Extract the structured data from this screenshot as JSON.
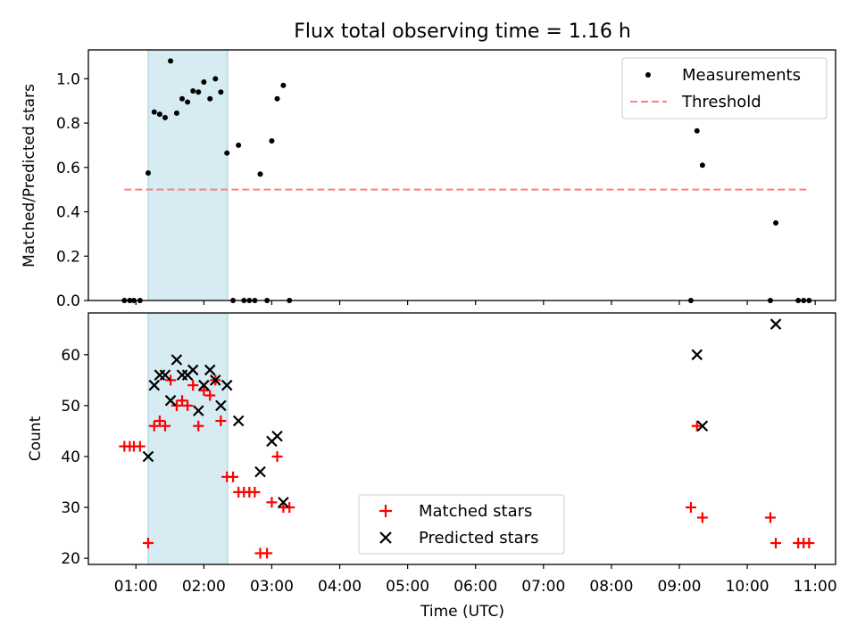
{
  "chart_data": [
    {
      "type": "scatter",
      "title": "Flux total observing time = 1.16 h",
      "xlabel": "",
      "ylabel": "Matched/Predicted stars",
      "xlim": [
        0.3,
        11.3
      ],
      "ylim": [
        0.0,
        1.13
      ],
      "yticks": [
        0.0,
        0.2,
        0.4,
        0.6,
        0.8,
        1.0
      ],
      "ytick_labels": [
        "0.0",
        "0.2",
        "0.4",
        "0.6",
        "0.8",
        "1.0"
      ],
      "legend": {
        "position": "top-right",
        "entries": [
          "Measurements",
          "Threshold"
        ]
      },
      "shaded_span": [
        1.18,
        2.35
      ],
      "series": [
        {
          "name": "Measurements",
          "marker": "dot",
          "color": "#000000",
          "points": [
            [
              0.83,
              0.0
            ],
            [
              0.91,
              0.0
            ],
            [
              0.97,
              0.0
            ],
            [
              1.06,
              0.0
            ],
            [
              1.18,
              0.575
            ],
            [
              1.27,
              0.85
            ],
            [
              1.35,
              0.84
            ],
            [
              1.43,
              0.825
            ],
            [
              1.51,
              1.08
            ],
            [
              1.6,
              0.845
            ],
            [
              1.68,
              0.91
            ],
            [
              1.76,
              0.895
            ],
            [
              1.84,
              0.945
            ],
            [
              1.92,
              0.94
            ],
            [
              2.0,
              0.985
            ],
            [
              2.09,
              0.91
            ],
            [
              2.17,
              1.0
            ],
            [
              2.25,
              0.94
            ],
            [
              2.34,
              0.665
            ],
            [
              2.43,
              0.0
            ],
            [
              2.51,
              0.7
            ],
            [
              2.59,
              0.0
            ],
            [
              2.67,
              0.0
            ],
            [
              2.75,
              0.0
            ],
            [
              2.83,
              0.57
            ],
            [
              2.93,
              0.0
            ],
            [
              3.0,
              0.72
            ],
            [
              3.08,
              0.91
            ],
            [
              3.17,
              0.97
            ],
            [
              3.26,
              0.0
            ],
            [
              9.17,
              0.0
            ],
            [
              9.26,
              0.765
            ],
            [
              9.34,
              0.61
            ],
            [
              10.34,
              0.0
            ],
            [
              10.42,
              0.35
            ],
            [
              10.75,
              0.0
            ],
            [
              10.83,
              0.0
            ],
            [
              10.91,
              0.0
            ]
          ]
        },
        {
          "name": "Threshold",
          "style": "dashed-line",
          "color": "#ff7f7f",
          "x": [
            0.83,
            10.91
          ],
          "y": [
            0.5,
            0.5
          ]
        }
      ]
    },
    {
      "type": "scatter",
      "title": "",
      "xlabel": "Time (UTC)",
      "ylabel": "Count",
      "xlim": [
        0.3,
        11.3
      ],
      "ylim": [
        18.8,
        68.2
      ],
      "xticks": [
        1,
        2,
        3,
        4,
        5,
        6,
        7,
        8,
        9,
        10,
        11
      ],
      "xtick_labels": [
        "01:00",
        "02:00",
        "03:00",
        "04:00",
        "05:00",
        "06:00",
        "07:00",
        "08:00",
        "09:00",
        "10:00",
        "11:00"
      ],
      "yticks": [
        20,
        30,
        40,
        50,
        60
      ],
      "ytick_labels": [
        "20",
        "30",
        "40",
        "50",
        "60"
      ],
      "legend": {
        "position": "bottom-center",
        "entries": [
          "Matched stars",
          "Predicted stars"
        ]
      },
      "shaded_span": [
        1.18,
        2.35
      ],
      "series": [
        {
          "name": "Matched stars",
          "marker": "plus",
          "color": "#ff0000",
          "points": [
            [
              0.83,
              42
            ],
            [
              0.91,
              42
            ],
            [
              0.97,
              42
            ],
            [
              1.06,
              42
            ],
            [
              1.18,
              23
            ],
            [
              1.27,
              46
            ],
            [
              1.35,
              47
            ],
            [
              1.43,
              46
            ],
            [
              1.51,
              55
            ],
            [
              1.6,
              50
            ],
            [
              1.68,
              51
            ],
            [
              1.76,
              50
            ],
            [
              1.84,
              54
            ],
            [
              1.92,
              46
            ],
            [
              2.0,
              53
            ],
            [
              2.09,
              52
            ],
            [
              2.17,
              55
            ],
            [
              2.25,
              47
            ],
            [
              2.34,
              36
            ],
            [
              2.43,
              36
            ],
            [
              2.51,
              33
            ],
            [
              2.59,
              33
            ],
            [
              2.67,
              33
            ],
            [
              2.75,
              33
            ],
            [
              2.83,
              21
            ],
            [
              2.93,
              21
            ],
            [
              3.0,
              31
            ],
            [
              3.08,
              40
            ],
            [
              3.17,
              30
            ],
            [
              3.26,
              30
            ],
            [
              9.17,
              30
            ],
            [
              9.26,
              46
            ],
            [
              9.34,
              28
            ],
            [
              10.34,
              28
            ],
            [
              10.42,
              23
            ],
            [
              10.75,
              23
            ],
            [
              10.83,
              23
            ],
            [
              10.91,
              23
            ]
          ]
        },
        {
          "name": "Predicted stars",
          "marker": "x",
          "color": "#000000",
          "points": [
            [
              1.18,
              40
            ],
            [
              1.27,
              54
            ],
            [
              1.35,
              56
            ],
            [
              1.43,
              56
            ],
            [
              1.51,
              51
            ],
            [
              1.6,
              59
            ],
            [
              1.68,
              56
            ],
            [
              1.76,
              56
            ],
            [
              1.84,
              57
            ],
            [
              1.92,
              49
            ],
            [
              2.0,
              54
            ],
            [
              2.09,
              57
            ],
            [
              2.17,
              55
            ],
            [
              2.25,
              50
            ],
            [
              2.34,
              54
            ],
            [
              2.51,
              47
            ],
            [
              2.83,
              37
            ],
            [
              3.0,
              43
            ],
            [
              3.08,
              44
            ],
            [
              3.17,
              31
            ],
            [
              9.26,
              60
            ],
            [
              9.34,
              46
            ],
            [
              10.42,
              66
            ]
          ]
        }
      ]
    }
  ]
}
